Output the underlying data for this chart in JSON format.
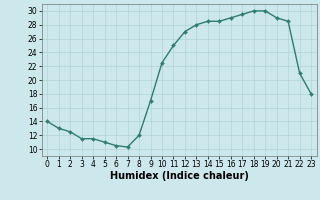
{
  "x": [
    0,
    1,
    2,
    3,
    4,
    5,
    6,
    7,
    8,
    9,
    10,
    11,
    12,
    13,
    14,
    15,
    16,
    17,
    18,
    19,
    20,
    21,
    22,
    23
  ],
  "y": [
    14,
    13,
    12.5,
    11.5,
    11.5,
    11,
    10.5,
    10.3,
    12,
    17,
    22.5,
    25,
    27,
    28,
    28.5,
    28.5,
    29,
    29.5,
    30,
    30,
    29,
    28.5,
    21,
    18
  ],
  "line_color": "#2e7d6e",
  "marker": "D",
  "marker_size": 2.0,
  "bg_color": "#cce8ec",
  "grid_color": "#b0d4d8",
  "xlabel": "Humidex (Indice chaleur)",
  "xlim": [
    -0.5,
    23.5
  ],
  "ylim": [
    9,
    31
  ],
  "yticks": [
    10,
    12,
    14,
    16,
    18,
    20,
    22,
    24,
    26,
    28,
    30
  ],
  "xticks": [
    0,
    1,
    2,
    3,
    4,
    5,
    6,
    7,
    8,
    9,
    10,
    11,
    12,
    13,
    14,
    15,
    16,
    17,
    18,
    19,
    20,
    21,
    22,
    23
  ],
  "tick_fontsize": 5.5,
  "xlabel_fontsize": 7.0,
  "line_width": 1.0
}
